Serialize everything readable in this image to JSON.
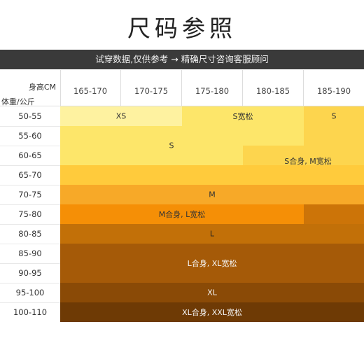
{
  "title": "尺码参照",
  "banner": "试穿数据,仅供参考 → 精确尺寸咨询客服顾问",
  "header": {
    "height_label": "身高CM",
    "weight_label": "体重/公斤",
    "columns": [
      "165-170",
      "170-175",
      "175-180",
      "180-185",
      "185-190"
    ]
  },
  "rows": [
    "50-55",
    "55-60",
    "60-65",
    "65-70",
    "70-75",
    "75-80",
    "80-85",
    "85-90",
    "90-95",
    "95-100",
    "100-110"
  ],
  "sizes": {
    "xs": "XS",
    "s_loose": "S宽松",
    "s_top": "S",
    "s": "S",
    "s_fit_m_fit": "S合身, M宽松",
    "m": "M",
    "m_fit_l_loose": "M合身, L宽松",
    "l": "L",
    "l_fit_xl_loose": "L合身, XL宽松",
    "xl": "XL",
    "xl_fit_xxl_loose": "XL合身, XXL宽松"
  },
  "colors": {
    "band1": "#FEF2A0",
    "band2": "#FDE66A",
    "band2b": "#FDD54E",
    "band3": "#FFCB3C",
    "band4": "#F7A928",
    "band5": "#F58F06",
    "band5b": "#CC7408",
    "band6": "#C27008",
    "band7": "#A55A08",
    "band8": "#8A4A06",
    "band9": "#6E3A05"
  }
}
